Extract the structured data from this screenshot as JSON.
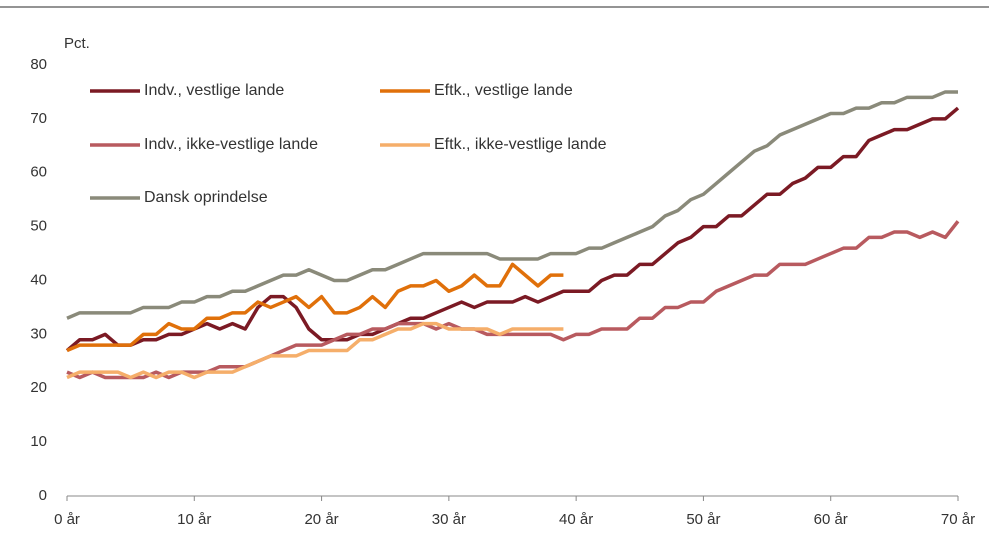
{
  "chart_data": {
    "type": "line",
    "y_label": "Pct.",
    "x": [
      0,
      1,
      2,
      3,
      4,
      5,
      6,
      7,
      8,
      9,
      10,
      11,
      12,
      13,
      14,
      15,
      16,
      17,
      18,
      19,
      20,
      21,
      22,
      23,
      24,
      25,
      26,
      27,
      28,
      29,
      30,
      31,
      32,
      33,
      34,
      35,
      36,
      37,
      38,
      39,
      40,
      41,
      42,
      43,
      44,
      45,
      46,
      47,
      48,
      49,
      50,
      51,
      52,
      53,
      54,
      55,
      56,
      57,
      58,
      59,
      60,
      61,
      62,
      63,
      64,
      65,
      66,
      67,
      68,
      69,
      70
    ],
    "xlim": [
      0,
      70
    ],
    "xticks": [
      {
        "value": 0,
        "label": "0 år"
      },
      {
        "value": 10,
        "label": "10 år"
      },
      {
        "value": 20,
        "label": "20 år"
      },
      {
        "value": 30,
        "label": "30 år"
      },
      {
        "value": 40,
        "label": "40 år"
      },
      {
        "value": 50,
        "label": "50 år"
      },
      {
        "value": 60,
        "label": "60 år"
      },
      {
        "value": 70,
        "label": "70 år"
      }
    ],
    "ylim": [
      0,
      80
    ],
    "yticks": [
      0,
      10,
      20,
      30,
      40,
      50,
      60,
      70,
      80
    ],
    "grid": false,
    "series": [
      {
        "name": "Indv., vestlige lande",
        "color": "#7b1a24",
        "values": [
          27,
          29,
          29,
          30,
          28,
          28,
          29,
          29,
          30,
          30,
          31,
          32,
          31,
          32,
          31,
          35,
          37,
          37,
          35,
          31,
          29,
          29,
          29,
          30,
          30,
          31,
          32,
          33,
          33,
          34,
          35,
          36,
          35,
          36,
          36,
          36,
          37,
          36,
          37,
          38,
          38,
          38,
          40,
          41,
          41,
          43,
          43,
          45,
          47,
          48,
          50,
          50,
          52,
          52,
          54,
          56,
          56,
          58,
          59,
          61,
          61,
          63,
          63,
          66,
          67,
          68,
          68,
          69,
          70,
          70,
          72
        ]
      },
      {
        "name": "Eftk., vestlige lande",
        "color": "#e0700a",
        "values": [
          27,
          28,
          28,
          28,
          28,
          28,
          30,
          30,
          32,
          31,
          31,
          33,
          33,
          34,
          34,
          36,
          35,
          36,
          37,
          35,
          37,
          34,
          34,
          35,
          37,
          35,
          38,
          39,
          39,
          40,
          38,
          39,
          41,
          39,
          39,
          43,
          41,
          39,
          41,
          41,
          null,
          null,
          null,
          null,
          null,
          null,
          null,
          null,
          null,
          null,
          null,
          null,
          null,
          null,
          null,
          null,
          null,
          null,
          null,
          null,
          null,
          null,
          null,
          null,
          null,
          null,
          null,
          null,
          null,
          null,
          null
        ]
      },
      {
        "name": "Indv., ikke-vestlige lande",
        "color": "#b85a5f",
        "values": [
          23,
          22,
          23,
          22,
          22,
          22,
          22,
          23,
          22,
          23,
          23,
          23,
          24,
          24,
          24,
          25,
          26,
          27,
          28,
          28,
          28,
          29,
          30,
          30,
          31,
          31,
          32,
          32,
          32,
          31,
          32,
          31,
          31,
          30,
          30,
          30,
          30,
          30,
          30,
          29,
          30,
          30,
          31,
          31,
          31,
          33,
          33,
          35,
          35,
          36,
          36,
          38,
          39,
          40,
          41,
          41,
          43,
          43,
          43,
          44,
          45,
          46,
          46,
          48,
          48,
          49,
          49,
          48,
          49,
          48,
          51
        ]
      },
      {
        "name": "Eftk., ikke-vestlige lande",
        "color": "#f5ae6a",
        "values": [
          22,
          23,
          23,
          23,
          23,
          22,
          23,
          22,
          23,
          23,
          22,
          23,
          23,
          23,
          24,
          25,
          26,
          26,
          26,
          27,
          27,
          27,
          27,
          29,
          29,
          30,
          31,
          31,
          32,
          32,
          31,
          31,
          31,
          31,
          30,
          31,
          31,
          31,
          31,
          31,
          null,
          null,
          null,
          null,
          null,
          null,
          null,
          null,
          null,
          null,
          null,
          null,
          null,
          null,
          null,
          null,
          null,
          null,
          null,
          null,
          null,
          null,
          null,
          null,
          null,
          null,
          null,
          null,
          null,
          null,
          null
        ]
      },
      {
        "name": "Dansk oprindelse",
        "color": "#8a8a7a",
        "values": [
          33,
          34,
          34,
          34,
          34,
          34,
          35,
          35,
          35,
          36,
          36,
          37,
          37,
          38,
          38,
          39,
          40,
          41,
          41,
          42,
          41,
          40,
          40,
          41,
          42,
          42,
          43,
          44,
          45,
          45,
          45,
          45,
          45,
          45,
          44,
          44,
          44,
          44,
          45,
          45,
          45,
          46,
          46,
          47,
          48,
          49,
          50,
          52,
          53,
          55,
          56,
          58,
          60,
          62,
          64,
          65,
          67,
          68,
          69,
          70,
          71,
          71,
          72,
          72,
          73,
          73,
          74,
          74,
          74,
          75,
          75
        ]
      }
    ]
  }
}
